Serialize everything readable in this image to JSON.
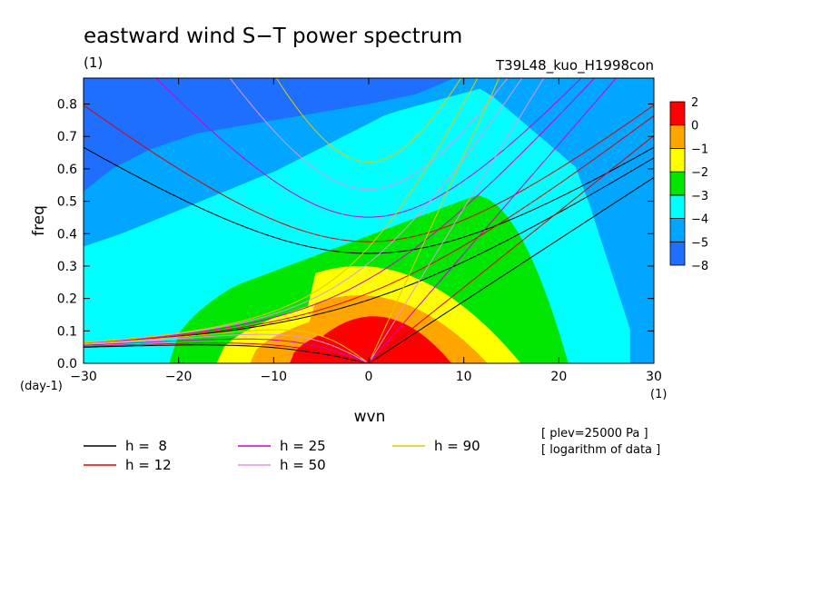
{
  "chart_data": {
    "type": "heatmap",
    "title": "eastward wind S−T power spectrum",
    "subtitle_left": "(1)",
    "subtitle_right": "T39L48_kuo_H1998con",
    "xlabel": "wvn",
    "ylabel": "freq",
    "x_unit": "(1)",
    "y_unit": "(day-1)",
    "xlim": [
      -30,
      30
    ],
    "ylim": [
      0,
      0.88
    ],
    "x_ticks": [
      -30,
      -20,
      -10,
      0,
      10,
      20,
      30
    ],
    "x_tick_labels": [
      "−30",
      "−20",
      "−10",
      "0",
      "10",
      "20",
      "30"
    ],
    "y_ticks": [
      0,
      0.1,
      0.2,
      0.3,
      0.4,
      0.5,
      0.6,
      0.7,
      0.8
    ],
    "y_tick_labels": [
      "0.0",
      "0.1",
      "0.2",
      "0.3",
      "0.4",
      "0.5",
      "0.6",
      "0.7",
      "0.8"
    ],
    "colorbar": {
      "levels": [
        -8,
        -5,
        -4,
        -3,
        -2,
        -1,
        0,
        2
      ],
      "labels": [
        "−8",
        "−5",
        "−4",
        "−3",
        "−2",
        "−1",
        "0",
        "2"
      ],
      "colors": [
        "#1f6fff",
        "#00a6ff",
        "#00ffff",
        "#00e600",
        "#ffff00",
        "#ffa500",
        "#ff0000"
      ]
    },
    "field_colors": {
      "level_-5": "#1f6fff",
      "level_-4": "#00a6ff",
      "level_-3": "#00ffff",
      "level_-2": "#00e600",
      "level_-1": "#ffff00",
      "level_0": "#ffa500",
      "level_2": "#ff0000"
    },
    "dispersion_curves": [
      {
        "h": 8,
        "color": "#000000"
      },
      {
        "h": 12,
        "color": "#e00000"
      },
      {
        "h": 25,
        "color": "#d000d0"
      },
      {
        "h": 50,
        "color": "#e098e0"
      },
      {
        "h": 90,
        "color": "#e6c800"
      }
    ],
    "legend": [
      {
        "label": "h =  8",
        "color": "#000000"
      },
      {
        "label": "h = 12",
        "color": "#e00000"
      },
      {
        "label": "h = 25",
        "color": "#d000d0"
      },
      {
        "label": "h = 50",
        "color": "#e098e0"
      },
      {
        "label": "h = 90",
        "color": "#e6c800"
      }
    ],
    "notes": [
      "[ plev=25000 Pa ]",
      "[ logarithm of data ]"
    ]
  }
}
